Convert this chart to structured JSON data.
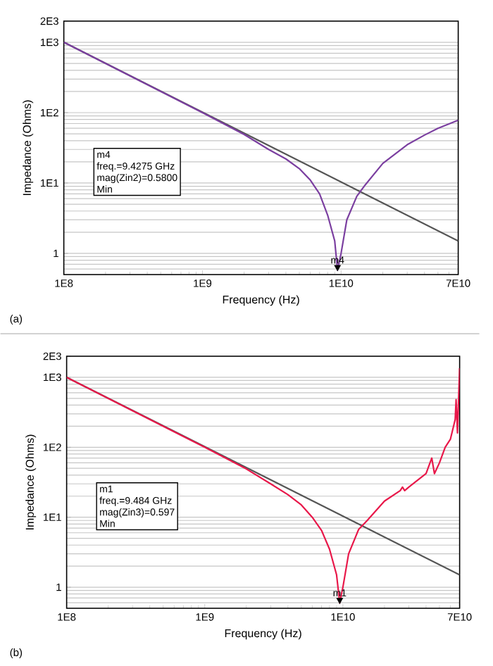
{
  "chart_data": [
    {
      "type": "line",
      "xlabel": "Frequency (Hz)",
      "ylabel": "Impedance (Ohms)",
      "log": "xy",
      "grid": "y",
      "marker": "none",
      "line_style": "solid",
      "xlim": [
        100000000.0,
        70000000000.0
      ],
      "ylim": [
        0.5,
        2000
      ],
      "xticks": [
        {
          "value": 100000000.0,
          "label": "1E8"
        },
        {
          "value": 1000000000.0,
          "label": "1E9"
        },
        {
          "value": 10000000000.0,
          "label": "1E10"
        },
        {
          "value": 70000000000.0,
          "label": "7E10"
        }
      ],
      "yticks": [
        1,
        {
          "value": 10,
          "label": "1E1"
        },
        {
          "value": 100,
          "label": "1E2"
        },
        {
          "value": 1000,
          "label": "1E3"
        },
        {
          "value": 2000,
          "label": "2E3"
        }
      ],
      "series": [
        {
          "color": "#555555",
          "x": [
            100000000.0,
            70000000000.0
          ],
          "values": [
            1000,
            1.5
          ]
        },
        {
          "color": "#7b3fa0",
          "x": [
            100000000.0,
            1000000000.0,
            2000000000.0,
            3000000000.0,
            4000000000.0,
            5000000000.0,
            6000000000.0,
            7000000000.0,
            8000000000.0,
            9000000000.0,
            9427500000.0,
            10000000000.0,
            11000000000.0,
            13000000000.0,
            15000000000.0,
            20000000000.0,
            30000000000.0,
            40000000000.0,
            50000000000.0,
            70000000000.0
          ],
          "values": [
            1000,
            100,
            49,
            30,
            22,
            16,
            11,
            7,
            3.5,
            1.5,
            0.58,
            1.0,
            3,
            6.5,
            9.5,
            19,
            35,
            48,
            60,
            78
          ]
        }
      ],
      "annotations": [
        {
          "text": "m4",
          "x": 9427500000.0,
          "y": 0.58
        },
        "m4",
        "freq.=9.4275 GHz",
        "mag(Zin2)=0.5800",
        "Min",
        "(a)"
      ]
    },
    {
      "type": "line",
      "xlabel": "Frequency (Hz)",
      "ylabel": "Impedance (Ohms)",
      "log": "xy",
      "grid": "y",
      "marker": "none",
      "line_style": "solid",
      "xlim": [
        100000000.0,
        70000000000.0
      ],
      "ylim": [
        0.5,
        2000
      ],
      "xticks": [
        {
          "value": 100000000.0,
          "label": "1E8"
        },
        {
          "value": 1000000000.0,
          "label": "1E9"
        },
        {
          "value": 10000000000.0,
          "label": "1E10"
        },
        {
          "value": 70000000000.0,
          "label": "7E10"
        }
      ],
      "yticks": [
        1,
        {
          "value": 10,
          "label": "1E1"
        },
        {
          "value": 100,
          "label": "1E2"
        },
        {
          "value": 1000,
          "label": "1E3"
        },
        {
          "value": 2000,
          "label": "2E3"
        }
      ],
      "series": [
        {
          "color": "#555555",
          "x": [
            100000000.0,
            70000000000.0
          ],
          "values": [
            1000,
            1.5
          ]
        },
        {
          "color": "#e8184a",
          "x": [
            100000000.0,
            1000000000.0,
            2000000000.0,
            3000000000.0,
            4000000000.0,
            5000000000.0,
            6000000000.0,
            7000000000.0,
            8000000000.0,
            9000000000.0,
            9484000000.0,
            10000000000.0,
            11000000000.0,
            13000000000.0,
            15000000000.0,
            20000000000.0,
            26000000000.0,
            27000000000.0,
            28000000000.0,
            30000000000.0,
            40000000000.0,
            44000000000.0,
            46000000000.0,
            50000000000.0,
            55000000000.0,
            60000000000.0,
            65000000000.0,
            66000000000.0,
            67500000000.0,
            70000000000.0
          ],
          "values": [
            1000,
            100,
            49,
            30,
            21,
            15,
            10,
            6.5,
            3.5,
            1.5,
            0.597,
            1.0,
            3,
            6.7,
            9,
            17,
            24,
            27,
            24,
            27,
            42,
            70,
            42,
            60,
            100,
            130,
            250,
            480,
            160,
            1350
          ]
        }
      ],
      "annotations": [
        {
          "text": "m1",
          "x": 9484000000.0,
          "y": 0.597
        },
        "m1",
        "freq.=9.484 GHz",
        "mag(Zin3)=0.597",
        "Min",
        "(b)"
      ]
    }
  ]
}
